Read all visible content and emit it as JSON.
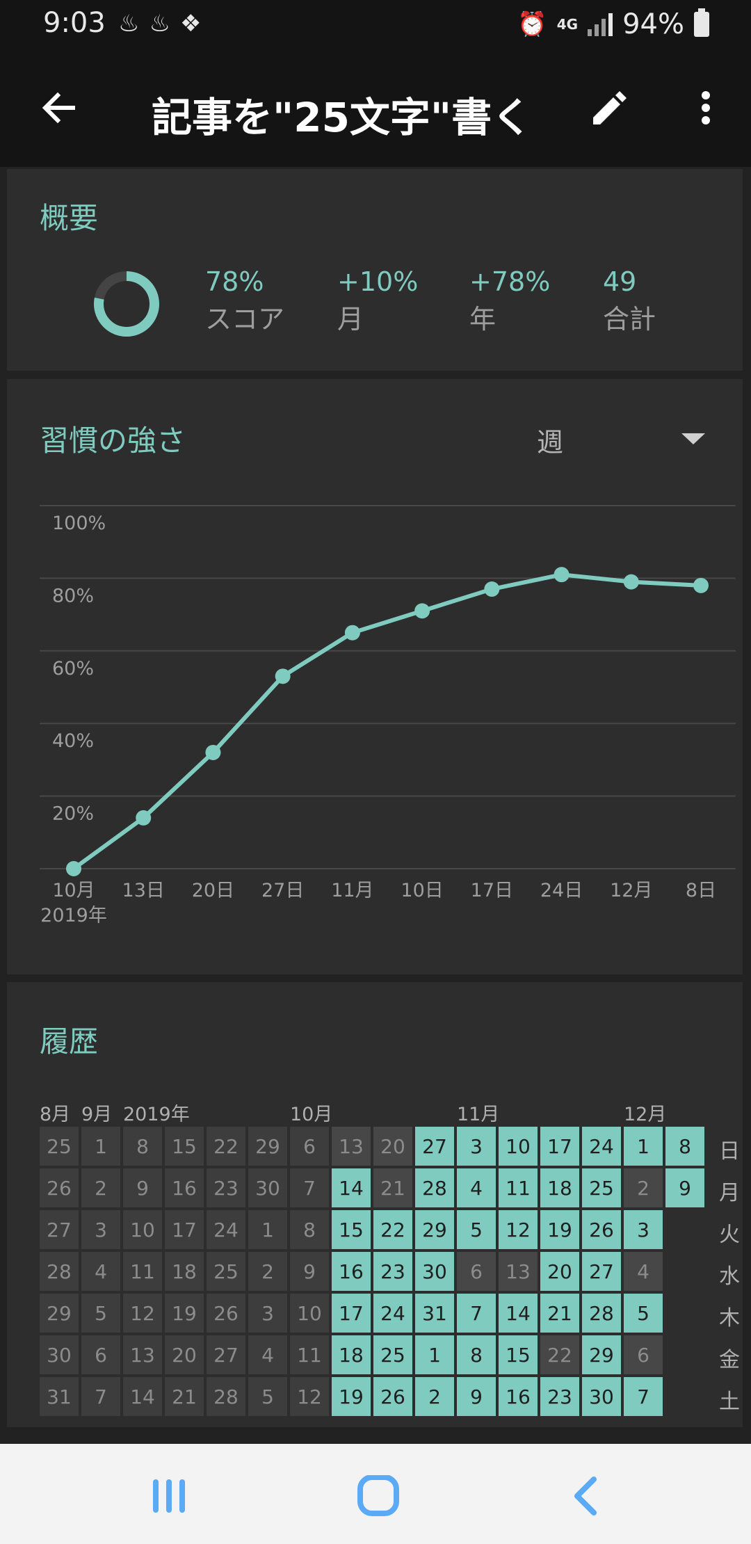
{
  "status_bar": {
    "time": "9:03",
    "network": "4G",
    "battery": "94%"
  },
  "app_bar": {
    "title": "記事を\"25文字\"書く",
    "icons": [
      "back-arrow-icon",
      "pencil-icon",
      "more-vert-icon"
    ]
  },
  "summary": {
    "title": "概要",
    "score_fraction": 0.78,
    "stats": [
      {
        "value": "78%",
        "label": "スコア"
      },
      {
        "value": "+10%",
        "label": "月"
      },
      {
        "value": "+78%",
        "label": "年"
      },
      {
        "value": "49",
        "label": "合計"
      }
    ]
  },
  "strength": {
    "title": "習慣の強さ",
    "period": "週"
  },
  "chart_data": {
    "type": "line",
    "title": "習慣の強さ",
    "categories": [
      "10月",
      "13日",
      "20日",
      "27日",
      "11月",
      "10日",
      "17日",
      "24日",
      "12月",
      "8日"
    ],
    "x_sub_label": "2019年",
    "series": [
      {
        "values": [
          0,
          14,
          32,
          53,
          65,
          71,
          77,
          81,
          79,
          78
        ]
      }
    ],
    "y_ticks": [
      "20%",
      "40%",
      "60%",
      "80%",
      "100%"
    ],
    "ylim": [
      0,
      100
    ],
    "grid": true,
    "line_color": "#7fcbbf"
  },
  "history": {
    "title": "履歴",
    "month_labels": [
      "8月",
      "9月",
      "2019年",
      "10月",
      "11月",
      "12月"
    ],
    "weekdays": [
      "日",
      "月",
      "火",
      "水",
      "木",
      "金",
      "土"
    ],
    "columns": [
      {
        "days": [
          "25",
          "26",
          "27",
          "28",
          "29",
          "30",
          "31"
        ],
        "state": [
          "off",
          "off",
          "off",
          "off",
          "off",
          "off",
          "off"
        ]
      },
      {
        "days": [
          "1",
          "2",
          "3",
          "4",
          "5",
          "6",
          "7"
        ],
        "state": [
          "off",
          "off",
          "off",
          "off",
          "off",
          "off",
          "off"
        ]
      },
      {
        "days": [
          "8",
          "9",
          "10",
          "11",
          "12",
          "13",
          "14"
        ],
        "state": [
          "off",
          "off",
          "off",
          "off",
          "off",
          "off",
          "off"
        ]
      },
      {
        "days": [
          "15",
          "16",
          "17",
          "18",
          "19",
          "20",
          "21"
        ],
        "state": [
          "off",
          "off",
          "off",
          "off",
          "off",
          "off",
          "off"
        ]
      },
      {
        "days": [
          "22",
          "23",
          "24",
          "25",
          "26",
          "27",
          "28"
        ],
        "state": [
          "off",
          "off",
          "off",
          "off",
          "off",
          "off",
          "off"
        ]
      },
      {
        "days": [
          "29",
          "30",
          "1",
          "2",
          "3",
          "4",
          "5"
        ],
        "state": [
          "off",
          "off",
          "off",
          "off",
          "off",
          "off",
          "off"
        ]
      },
      {
        "days": [
          "6",
          "7",
          "8",
          "9",
          "10",
          "11",
          "12"
        ],
        "state": [
          "off",
          "off",
          "off",
          "off",
          "off",
          "off",
          "off"
        ]
      },
      {
        "days": [
          "13",
          "14",
          "15",
          "16",
          "17",
          "18",
          "19"
        ],
        "state": [
          "dim",
          "on",
          "on",
          "on",
          "on",
          "on",
          "on"
        ]
      },
      {
        "days": [
          "20",
          "21",
          "22",
          "23",
          "24",
          "25",
          "26"
        ],
        "state": [
          "dim",
          "dim",
          "on",
          "on",
          "on",
          "on",
          "on"
        ]
      },
      {
        "days": [
          "27",
          "28",
          "29",
          "30",
          "31",
          "1",
          "2"
        ],
        "state": [
          "on",
          "on",
          "on",
          "on",
          "on",
          "on",
          "on"
        ]
      },
      {
        "days": [
          "3",
          "4",
          "5",
          "6",
          "7",
          "8",
          "9"
        ],
        "state": [
          "on",
          "on",
          "on",
          "dim",
          "on",
          "on",
          "on"
        ]
      },
      {
        "days": [
          "10",
          "11",
          "12",
          "13",
          "14",
          "15",
          "16"
        ],
        "state": [
          "on",
          "on",
          "on",
          "dim",
          "on",
          "on",
          "on"
        ]
      },
      {
        "days": [
          "17",
          "18",
          "19",
          "20",
          "21",
          "22",
          "23"
        ],
        "state": [
          "on",
          "on",
          "on",
          "on",
          "on",
          "dim",
          "on"
        ]
      },
      {
        "days": [
          "24",
          "25",
          "26",
          "27",
          "28",
          "29",
          "30"
        ],
        "state": [
          "on",
          "on",
          "on",
          "on",
          "on",
          "on",
          "on"
        ]
      },
      {
        "days": [
          "1",
          "2",
          "3",
          "4",
          "5",
          "6",
          "7"
        ],
        "state": [
          "on",
          "dim",
          "on",
          "dim",
          "on",
          "dim",
          "on"
        ]
      },
      {
        "days": [
          "8",
          "9"
        ],
        "state": [
          "on",
          "on"
        ]
      }
    ]
  },
  "nav_bar": {
    "icons": [
      "recent-apps-icon",
      "home-icon",
      "back-icon"
    ]
  }
}
